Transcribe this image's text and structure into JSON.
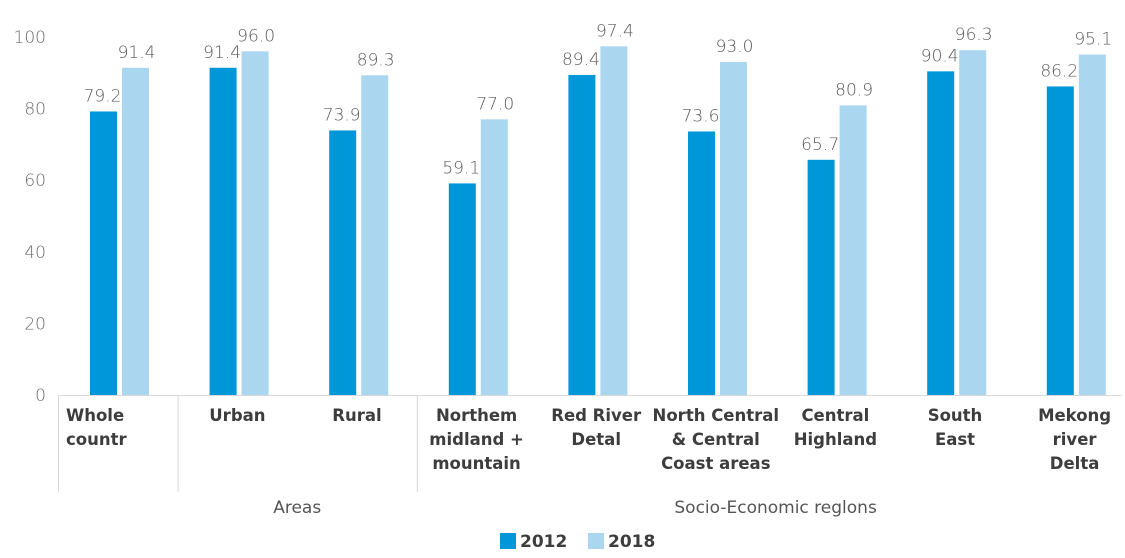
{
  "chart_data": {
    "type": "bar",
    "categories": [
      [
        "Whole",
        "countr"
      ],
      [
        "Urban"
      ],
      [
        "Rural"
      ],
      [
        "Northem",
        "midland +",
        "mountain"
      ],
      [
        "Red River",
        "Detal"
      ],
      [
        "North Central",
        "& Central",
        "Coast areas"
      ],
      [
        "Central",
        "Highland"
      ],
      [
        "South",
        "East"
      ],
      [
        "Mekong",
        "river",
        "Delta"
      ]
    ],
    "series": [
      {
        "name": "2012",
        "color": "#0097d9",
        "values": [
          79.2,
          91.4,
          73.9,
          59.1,
          89.4,
          73.6,
          65.7,
          90.4,
          86.2
        ],
        "labels": [
          "79.2",
          "91.4",
          "73.9",
          "59.1",
          "89.4",
          "73.6",
          "65.7",
          "90.4",
          "86.2"
        ]
      },
      {
        "name": "2018",
        "color": "#aad6f0",
        "values": [
          91.4,
          96.0,
          89.3,
          77.0,
          97.4,
          93.0,
          80.9,
          96.3,
          95.1
        ],
        "labels": [
          "91.4",
          "96.0",
          "89.3",
          "77.0",
          "97.4",
          "93.0",
          "80.9",
          "96.3",
          "95.1"
        ]
      }
    ],
    "yticks": [
      "0",
      "20",
      "40",
      "60",
      "80",
      "100"
    ],
    "ylim": [
      0,
      100
    ],
    "groups": [
      {
        "label": "Areas",
        "start": 1,
        "end": 2
      },
      {
        "label": "Socio-Economic reglons",
        "start": 3,
        "end": 8
      }
    ],
    "legend_position": "bottom-center",
    "grid": false
  }
}
